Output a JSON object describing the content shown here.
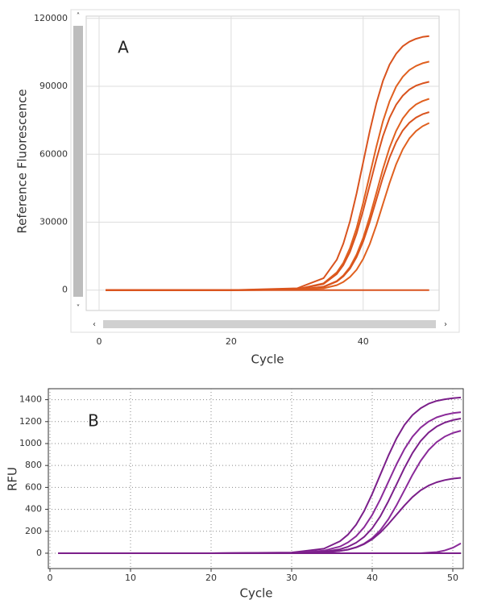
{
  "chart_data": [
    {
      "type": "line",
      "annotation": "A",
      "xlabel": "Cycle",
      "ylabel": "Reference Fluorescence",
      "x": [
        1,
        10,
        20,
        30,
        34,
        36,
        37,
        38,
        39,
        40,
        41,
        42,
        43,
        44,
        45,
        46,
        47,
        48,
        49,
        50
      ],
      "xlim": [
        -1.95,
        51.5
      ],
      "xticks": [
        0,
        20,
        40
      ],
      "ylim": [
        -9000,
        121000
      ],
      "yticks": [
        0,
        30000,
        60000,
        90000,
        120000
      ],
      "grid": "solid",
      "series": [
        {
          "color": "#d9531e",
          "values": [
            0,
            0,
            0,
            800,
            5300,
            13400,
            20600,
            30400,
            42700,
            56500,
            70300,
            82600,
            92400,
            99600,
            104400,
            107700,
            109700,
            111000,
            111800,
            112200
          ]
        },
        {
          "color": "#e0601f",
          "values": [
            0,
            0,
            0,
            400,
            3000,
            7800,
            12100,
            18600,
            27400,
            38600,
            51000,
            63400,
            74600,
            83400,
            89900,
            94200,
            97200,
            99000,
            100200,
            100900
          ]
        },
        {
          "color": "#d9531e",
          "values": [
            0,
            0,
            0,
            400,
            2700,
            7100,
            11100,
            16900,
            25000,
            35200,
            46500,
            57800,
            68000,
            76100,
            81900,
            85900,
            88600,
            90300,
            91300,
            92000
          ]
        },
        {
          "color": "#e0601f",
          "values": [
            0,
            0,
            0,
            200,
            1500,
            4000,
            6500,
            10200,
            15700,
            23100,
            32500,
            43000,
            53500,
            62900,
            70300,
            75800,
            79500,
            82000,
            83500,
            84500
          ]
        },
        {
          "color": "#d9531e",
          "values": [
            0,
            0,
            0,
            200,
            1400,
            3800,
            6100,
            9500,
            14600,
            21500,
            30200,
            40000,
            49800,
            58500,
            65400,
            70500,
            73900,
            76200,
            77700,
            78600
          ]
        },
        {
          "color": "#e0601f",
          "values": [
            0,
            0,
            0,
            100,
            800,
            2200,
            3600,
            5800,
            9000,
            13800,
            20400,
            28700,
            38000,
            47300,
            55600,
            62200,
            67000,
            70200,
            72400,
            73800
          ]
        },
        {
          "color": "#d9531e",
          "values": [
            0,
            0,
            0,
            0,
            0,
            0,
            0,
            0,
            0,
            0,
            0,
            0,
            0,
            0,
            0,
            0,
            0,
            0,
            0,
            0
          ]
        }
      ]
    },
    {
      "type": "line",
      "annotation": "B",
      "xlabel": "Cycle",
      "ylabel": "RFU",
      "x": [
        1,
        10,
        20,
        30,
        34,
        36,
        37,
        38,
        39,
        40,
        41,
        42,
        43,
        44,
        45,
        46,
        47,
        48,
        49,
        50,
        51
      ],
      "xlim": [
        -0.2,
        51.3
      ],
      "xticks": [
        0,
        10,
        20,
        30,
        40,
        50
      ],
      "ylim": [
        -140,
        1500
      ],
      "yticks": [
        0,
        200,
        400,
        600,
        800,
        1000,
        1200,
        1400
      ],
      "grid": "dotted",
      "series": [
        {
          "color": "#7b1f8a",
          "values": [
            0,
            0,
            0,
            6,
            41,
            109,
            170,
            260,
            385,
            541,
            715,
            889,
            1045,
            1170,
            1260,
            1321,
            1363,
            1389,
            1404,
            1414,
            1420
          ]
        },
        {
          "color": "#8a2a99",
          "values": [
            0,
            0,
            0,
            3,
            23,
            61,
            99,
            155,
            237,
            350,
            491,
            650,
            809,
            950,
            1063,
            1145,
            1201,
            1239,
            1262,
            1277,
            1286
          ]
        },
        {
          "color": "#7b1f8a",
          "values": [
            0,
            0,
            0,
            2,
            14,
            36,
            59,
            95,
            149,
            228,
            336,
            473,
            625,
            778,
            914,
            1023,
            1101,
            1155,
            1191,
            1214,
            1228
          ]
        },
        {
          "color": "#8a2a99",
          "values": [
            0,
            0,
            0,
            1,
            8,
            21,
            33,
            54,
            87,
            137,
            209,
            309,
            435,
            575,
            715,
            841,
            941,
            1013,
            1063,
            1096,
            1117
          ]
        },
        {
          "color": "#7b1f8a",
          "values": [
            0,
            0,
            0,
            1,
            8,
            20,
            33,
            53,
            83,
            127,
            188,
            265,
            350,
            435,
            512,
            573,
            617,
            647,
            667,
            680,
            687
          ]
        },
        {
          "color": "#8a2a99",
          "values": [
            0,
            0,
            0,
            0,
            0,
            0,
            0,
            0,
            0,
            0,
            0,
            0,
            0,
            0,
            0,
            0,
            5,
            10,
            25,
            50,
            90
          ]
        },
        {
          "color": "#7b1f8a",
          "values": [
            0,
            0,
            0,
            0,
            0,
            0,
            0,
            0,
            0,
            0,
            0,
            0,
            0,
            0,
            0,
            0,
            0,
            0,
            0,
            0,
            0
          ]
        }
      ]
    }
  ]
}
